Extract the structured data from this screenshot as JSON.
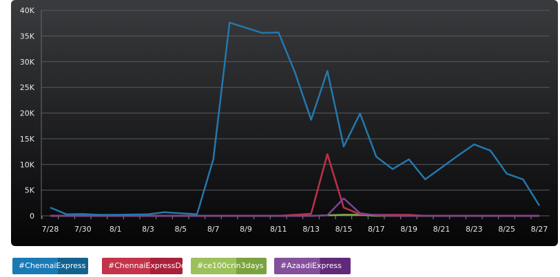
{
  "chart_data": {
    "type": "line",
    "x": [
      "7/28",
      "7/29",
      "7/30",
      "7/31",
      "8/1",
      "8/2",
      "8/3",
      "8/4",
      "8/5",
      "8/6",
      "8/7",
      "8/8",
      "8/9",
      "8/10",
      "8/11",
      "8/12",
      "8/13",
      "8/14",
      "8/15",
      "8/16",
      "8/17",
      "8/18",
      "8/19",
      "8/20",
      "8/21",
      "8/22",
      "8/23",
      "8/24",
      "8/25",
      "8/26",
      "8/27"
    ],
    "x_tick_labels": [
      "7/28",
      "7/30",
      "8/1",
      "8/3",
      "8/5",
      "8/7",
      "8/9",
      "8/11",
      "8/13",
      "8/15",
      "8/17",
      "8/19",
      "8/21",
      "8/23",
      "8/25",
      "8/27"
    ],
    "y_tick_labels": [
      "0",
      "5K",
      "10K",
      "15K",
      "20K",
      "25K",
      "30K",
      "35K",
      "40K"
    ],
    "ylim": [
      0,
      40000
    ],
    "grid": true,
    "legend_position": "bottom",
    "series": [
      {
        "name": "#ChennaiExpress",
        "color": "#2378ad",
        "values": [
          1600,
          300,
          350,
          200,
          200,
          250,
          300,
          700,
          500,
          300,
          11000,
          37600,
          36600,
          35600,
          35700,
          28000,
          18700,
          28200,
          13500,
          19900,
          11500,
          9100,
          11000,
          7100,
          9400,
          11700,
          13900,
          12700,
          8200,
          7100,
          2000
        ]
      },
      {
        "name": "#ChennaiExpressDobara",
        "color": "#c0304a",
        "values": [
          0,
          0,
          0,
          0,
          0,
          0,
          0,
          0,
          0,
          0,
          0,
          0,
          0,
          0,
          0,
          200,
          400,
          12000,
          1600,
          300,
          200,
          200,
          200,
          0,
          0,
          0,
          0,
          0,
          0,
          0,
          0
        ]
      },
      {
        "name": "#ce100crin3days",
        "color": "#86b04a",
        "values": [
          0,
          0,
          0,
          0,
          0,
          0,
          0,
          0,
          0,
          0,
          0,
          0,
          0,
          0,
          0,
          0,
          0,
          100,
          200,
          200,
          0,
          0,
          0,
          0,
          0,
          0,
          0,
          0,
          0,
          0,
          0
        ]
      },
      {
        "name": "#AzaadiExpress",
        "color": "#7b4592",
        "values": [
          0,
          0,
          0,
          0,
          0,
          0,
          0,
          0,
          0,
          0,
          0,
          0,
          0,
          0,
          0,
          0,
          0,
          100,
          3400,
          500,
          100,
          0,
          0,
          0,
          0,
          0,
          0,
          0,
          0,
          0,
          0
        ]
      }
    ]
  },
  "legend_colors": [
    [
      "#1a7ab5",
      "#12628f"
    ],
    [
      "#c33349",
      "#a8203a"
    ],
    [
      "#9cc15a",
      "#7aa33e"
    ],
    [
      "#84509c",
      "#62297a"
    ]
  ]
}
